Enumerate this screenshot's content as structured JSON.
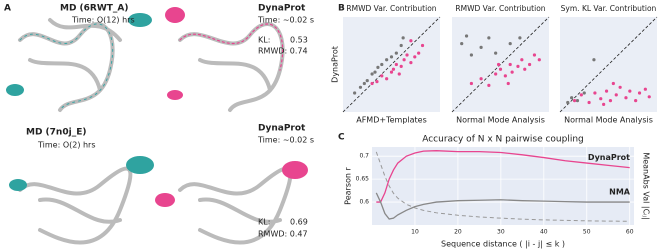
{
  "panels": [
    "A",
    "B",
    "C"
  ],
  "structures": [
    {
      "method": "MD (6RWT_A)",
      "time": "Time: O(12) hrs"
    },
    {
      "method": "DynaProt",
      "time": "Time: ~0.02 s",
      "kl_label": "KL:",
      "kl": 0.53,
      "rmwd": "RMWD: 0.74"
    },
    {
      "method": "MD (7n0j_E)",
      "time": "Time: O(2) hrs"
    },
    {
      "method": "DynaProt",
      "time": "Time: ~0.02 s",
      "kl_label": "KL:",
      "kl": 0.69,
      "rmwd": "RMWD: 0.47"
    }
  ],
  "chart_data": [
    {
      "type": "scatter",
      "title": "RMWD Var. Contribution",
      "xlabel": "AFMD+Templates",
      "ylabel": "DynaProt",
      "xlim": [
        0,
        1
      ],
      "ylim": [
        0,
        1
      ],
      "diagonal": true,
      "series": [
        {
          "color": "#777777",
          "x": [
            0.12,
            0.18,
            0.22,
            0.25,
            0.3,
            0.33,
            0.36,
            0.4,
            0.45,
            0.5,
            0.55,
            0.6,
            0.62
          ],
          "values": [
            0.2,
            0.26,
            0.3,
            0.33,
            0.4,
            0.42,
            0.47,
            0.5,
            0.55,
            0.58,
            0.62,
            0.7,
            0.78
          ]
        },
        {
          "color": "#e8458f",
          "x": [
            0.3,
            0.35,
            0.4,
            0.45,
            0.5,
            0.52,
            0.55,
            0.6,
            0.63,
            0.66,
            0.7,
            0.74,
            0.78,
            0.82,
            0.7,
            0.58
          ],
          "values": [
            0.3,
            0.32,
            0.38,
            0.35,
            0.42,
            0.45,
            0.5,
            0.48,
            0.55,
            0.6,
            0.52,
            0.58,
            0.62,
            0.7,
            0.75,
            0.4
          ]
        }
      ]
    },
    {
      "type": "scatter",
      "title": "RMWD Var. Contribution",
      "xlabel": "Normal Mode Analysis",
      "xlim": [
        0,
        1
      ],
      "ylim": [
        0,
        1
      ],
      "diagonal": true,
      "series": [
        {
          "color": "#777777",
          "x": [
            0.1,
            0.15,
            0.2,
            0.3,
            0.38,
            0.45,
            0.6,
            0.7
          ],
          "values": [
            0.72,
            0.8,
            0.6,
            0.68,
            0.78,
            0.62,
            0.72,
            0.78
          ]
        },
        {
          "color": "#e8458f",
          "x": [
            0.2,
            0.3,
            0.38,
            0.45,
            0.5,
            0.55,
            0.6,
            0.62,
            0.68,
            0.72,
            0.75,
            0.8,
            0.85,
            0.9,
            0.58,
            0.48
          ],
          "values": [
            0.3,
            0.35,
            0.28,
            0.4,
            0.45,
            0.38,
            0.5,
            0.42,
            0.48,
            0.55,
            0.45,
            0.5,
            0.6,
            0.55,
            0.3,
            0.5
          ]
        }
      ]
    },
    {
      "type": "scatter",
      "title": "Sym. KL Var. Contribution",
      "xlabel": "Normal Mode Analysis",
      "xlim": [
        0,
        1
      ],
      "ylim": [
        0,
        1
      ],
      "diagonal": true,
      "series": [
        {
          "color": "#777777",
          "x": [
            0.08,
            0.12,
            0.18,
            0.25,
            0.35
          ],
          "values": [
            0.1,
            0.15,
            0.12,
            0.2,
            0.55
          ]
        },
        {
          "color": "#e8458f",
          "x": [
            0.15,
            0.22,
            0.3,
            0.36,
            0.42,
            0.48,
            0.52,
            0.58,
            0.62,
            0.68,
            0.72,
            0.78,
            0.82,
            0.88,
            0.92,
            0.55,
            0.45
          ],
          "values": [
            0.12,
            0.18,
            0.1,
            0.2,
            0.14,
            0.22,
            0.12,
            0.18,
            0.26,
            0.15,
            0.22,
            0.12,
            0.2,
            0.24,
            0.16,
            0.3,
            0.08
          ]
        }
      ]
    },
    {
      "type": "line",
      "title": "Accuracy of N x N pairwise coupling",
      "xlabel": "Sequence distance  ( |i - j| ≤ k )",
      "ylabel": "Pearson r",
      "y2label": "MeanAbs Val |Cᵢⱼ|",
      "x": [
        1,
        2,
        3,
        4,
        5,
        6,
        8,
        10,
        12,
        15,
        20,
        25,
        30,
        35,
        40,
        45,
        50,
        55,
        60
      ],
      "xlim": [
        0,
        61
      ],
      "xticks": [
        10,
        20,
        30,
        40,
        50,
        60
      ],
      "ylim": [
        0.55,
        0.72
      ],
      "yticks": [
        0.6,
        0.65,
        0.7
      ],
      "y2lim": [
        0,
        0.32
      ],
      "grid": true,
      "series": [
        {
          "name": "DynaProt",
          "color": "#e8458f",
          "values": [
            0.6,
            0.6,
            0.62,
            0.65,
            0.67,
            0.685,
            0.7,
            0.707,
            0.711,
            0.712,
            0.71,
            0.71,
            0.708,
            0.703,
            0.697,
            0.69,
            0.685,
            0.68,
            0.675
          ]
        },
        {
          "name": "NMA",
          "color": "#888888",
          "values": [
            0.62,
            0.6,
            0.575,
            0.563,
            0.565,
            0.572,
            0.582,
            0.59,
            0.595,
            0.6,
            0.603,
            0.604,
            0.605,
            0.603,
            0.602,
            0.601,
            0.6,
            0.6,
            0.6
          ]
        },
        {
          "color": "#999999",
          "axis": "y2",
          "dashed": true,
          "values": [
            0.3,
            0.25,
            0.2,
            0.16,
            0.13,
            0.11,
            0.085,
            0.07,
            0.06,
            0.05,
            0.04,
            0.033,
            0.028,
            0.024,
            0.021,
            0.019,
            0.017,
            0.016,
            0.015
          ]
        }
      ]
    }
  ]
}
